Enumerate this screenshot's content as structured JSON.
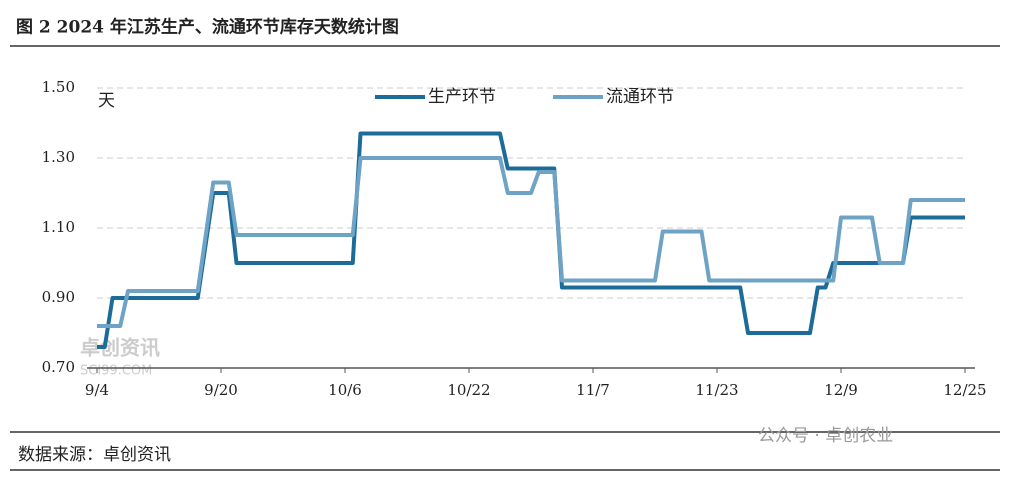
{
  "chart_data": {
    "type": "line",
    "title": "图 2 2024 年江苏生产、流通环节库存天数统计图",
    "y_unit": "天",
    "source": "数据来源：卓创资讯",
    "watermarks": [
      "卓创资讯",
      "SCI99.COM",
      "公众号 · 卓创农业"
    ],
    "legend": "top",
    "grid": true,
    "xlim": [
      "9/4",
      "12/25"
    ],
    "xticks": [
      "9/4",
      "9/20",
      "10/6",
      "10/22",
      "11/7",
      "11/23",
      "12/9",
      "12/25"
    ],
    "ylim": [
      0.7,
      1.5
    ],
    "yticks": [
      {
        "value": 0.7,
        "label": "0.70"
      },
      {
        "value": 0.9,
        "label": "0.90"
      },
      {
        "value": 1.1,
        "label": "1.10"
      },
      {
        "value": 1.3,
        "label": "1.30"
      },
      {
        "value": 1.5,
        "label": "1.50"
      }
    ],
    "series": [
      {
        "name": "生产环节",
        "color": "#1d6b98",
        "x": [
          "9/4",
          "9/5",
          "9/6",
          "9/17",
          "9/19",
          "9/21",
          "9/22",
          "10/7",
          "10/8",
          "10/26",
          "10/27",
          "11/2",
          "11/3",
          "11/26",
          "11/27",
          "12/5",
          "12/6",
          "12/7",
          "12/8",
          "12/17",
          "12/18",
          "12/25"
        ],
        "values": [
          0.76,
          0.76,
          0.9,
          0.9,
          1.2,
          1.2,
          1.0,
          1.0,
          1.37,
          1.37,
          1.27,
          1.27,
          0.93,
          0.93,
          0.8,
          0.8,
          0.93,
          0.93,
          1.0,
          1.0,
          1.13,
          1.13
        ]
      },
      {
        "name": "流通环节",
        "color": "#6fa3c5",
        "x": [
          "9/4",
          "9/7",
          "9/8",
          "9/17",
          "9/19",
          "9/21",
          "9/22",
          "10/7",
          "10/8",
          "10/26",
          "10/27",
          "10/30",
          "10/31",
          "11/2",
          "11/3",
          "11/15",
          "11/16",
          "11/21",
          "11/22",
          "12/8",
          "12/9",
          "12/13",
          "12/14",
          "12/17",
          "12/18",
          "12/25"
        ],
        "values": [
          0.82,
          0.82,
          0.92,
          0.92,
          1.23,
          1.23,
          1.08,
          1.08,
          1.3,
          1.3,
          1.2,
          1.2,
          1.26,
          1.26,
          0.95,
          0.95,
          1.09,
          1.09,
          0.95,
          0.95,
          1.13,
          1.13,
          1.0,
          1.0,
          1.18,
          1.18
        ]
      }
    ]
  }
}
